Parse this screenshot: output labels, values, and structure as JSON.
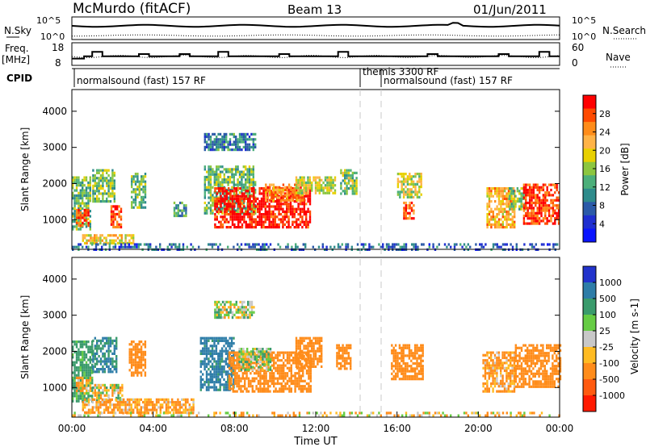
{
  "header": {
    "station": "McMurdo (fitACF)",
    "beam": "Beam 13",
    "date": "01/Jun/2011"
  },
  "panels": {
    "nsky": {
      "left_label": "N.Sky",
      "right_label": "N.Search",
      "left_ticks": [
        "10^5",
        "10^0"
      ],
      "right_ticks": [
        "10^5",
        "10^0"
      ]
    },
    "freq": {
      "left_label_line1": "Freq.",
      "left_label_line2": "[MHz]",
      "right_label": "Nave",
      "left_ticks": [
        "18",
        "8"
      ],
      "right_ticks": [
        "60",
        "0"
      ]
    },
    "cpid": {
      "label": "CPID",
      "segments": [
        {
          "text": "normalsound (fast) 157 RF",
          "start_hour": 0.0
        },
        {
          "text": "themis 3300 RF",
          "start_hour": 14.0
        },
        {
          "text": "normalsound (fast) 157 RF",
          "start_hour": 15.5
        }
      ]
    }
  },
  "axes": {
    "ylabel": "Slant Range [km]",
    "xlabel": "Time UT",
    "y_ticks": [
      "4000",
      "3000",
      "2000",
      "1000"
    ],
    "x_ticks": [
      "00:00",
      "04:00",
      "08:00",
      "12:00",
      "16:00",
      "20:00",
      "00:00"
    ]
  },
  "colorbars": {
    "power": {
      "label": "Power [dB]",
      "ticks": [
        "28",
        "24",
        "20",
        "16",
        "12",
        "8",
        "4"
      ],
      "colors": [
        "#ff0000",
        "#ff4a00",
        "#ff8c1a",
        "#ffb347",
        "#e8d000",
        "#8cc63f",
        "#4caf7a",
        "#2e8b8b",
        "#2b5aa8",
        "#1f2fd0",
        "#0a14ff"
      ]
    },
    "velocity": {
      "label": "Velocity [m s-1]",
      "ticks": [
        "1000",
        "500",
        "100",
        "25",
        "-25",
        "-100",
        "-500",
        "-1000"
      ],
      "colors": [
        "#2233cc",
        "#2e7da8",
        "#3a9b6c",
        "#66cc44",
        "#c8c8c8",
        "#ffbb22",
        "#ff8c1a",
        "#ff5a10",
        "#ff1a00"
      ]
    }
  },
  "chart_data": {
    "type": "heatmap",
    "x_range_hours": [
      0,
      24
    ],
    "y_range_km": [
      180,
      4600
    ],
    "panels": [
      "Power",
      "Velocity"
    ],
    "power_clusters": [
      {
        "t0": 0.0,
        "t1": 0.9,
        "r0": 700,
        "r1": 2200,
        "val": 12
      },
      {
        "t0": 0.2,
        "t1": 0.8,
        "r0": 800,
        "r1": 1300,
        "val": 26
      },
      {
        "t0": 1.0,
        "t1": 2.1,
        "r0": 1500,
        "r1": 2400,
        "val": 12
      },
      {
        "t0": 1.9,
        "t1": 2.4,
        "r0": 800,
        "r1": 1400,
        "val": 26
      },
      {
        "t0": 2.9,
        "t1": 3.6,
        "r0": 1300,
        "r1": 2300,
        "val": 12
      },
      {
        "t0": 0.5,
        "t1": 3.0,
        "r0": 350,
        "r1": 600,
        "val": 18
      },
      {
        "t0": 5.0,
        "t1": 5.6,
        "r0": 1100,
        "r1": 1500,
        "val": 10
      },
      {
        "t0": 6.5,
        "t1": 9.0,
        "r0": 1200,
        "r1": 2500,
        "val": 12
      },
      {
        "t0": 7.0,
        "t1": 11.7,
        "r0": 800,
        "r1": 1900,
        "val": 28
      },
      {
        "t0": 9.5,
        "t1": 11.5,
        "r0": 1500,
        "r1": 2000,
        "val": 22
      },
      {
        "t0": 6.5,
        "t1": 9.0,
        "r0": 2900,
        "r1": 3400,
        "val": 8
      },
      {
        "t0": 11.0,
        "t1": 13.0,
        "r0": 1700,
        "r1": 2200,
        "val": 16
      },
      {
        "t0": 13.2,
        "t1": 14.0,
        "r0": 1700,
        "r1": 2400,
        "val": 14
      },
      {
        "t0": 16.0,
        "t1": 17.2,
        "r0": 1600,
        "r1": 2300,
        "val": 16
      },
      {
        "t0": 16.3,
        "t1": 16.8,
        "r0": 1000,
        "r1": 1500,
        "val": 24
      },
      {
        "t0": 20.4,
        "t1": 21.8,
        "r0": 800,
        "r1": 1900,
        "val": 20
      },
      {
        "t0": 21.5,
        "t1": 22.3,
        "r0": 1300,
        "r1": 1900,
        "val": 14
      },
      {
        "t0": 22.2,
        "t1": 24.0,
        "r0": 900,
        "r1": 2000,
        "val": 26
      },
      {
        "t0": 0.0,
        "t1": 24.0,
        "r0": 200,
        "r1": 350,
        "val": 6
      }
    ],
    "velocity_clusters": [
      {
        "t0": 0.0,
        "t1": 1.0,
        "r0": 600,
        "r1": 2300,
        "val": 200
      },
      {
        "t0": 0.2,
        "t1": 0.9,
        "r0": 800,
        "r1": 1300,
        "val": -100
      },
      {
        "t0": 1.0,
        "t1": 2.2,
        "r0": 1400,
        "r1": 2400,
        "val": 500
      },
      {
        "t0": 1.0,
        "t1": 2.5,
        "r0": 600,
        "r1": 1100,
        "val": 0
      },
      {
        "t0": 2.8,
        "t1": 3.6,
        "r0": 1300,
        "r1": 2300,
        "val": -300
      },
      {
        "t0": 0.5,
        "t1": 6.0,
        "r0": 300,
        "r1": 700,
        "val": -150
      },
      {
        "t0": 6.3,
        "t1": 8.0,
        "r0": 900,
        "r1": 2400,
        "val": 600
      },
      {
        "t0": 7.7,
        "t1": 11.8,
        "r0": 900,
        "r1": 2000,
        "val": -250
      },
      {
        "t0": 8.2,
        "t1": 9.8,
        "r0": 1500,
        "r1": 2100,
        "val": 60
      },
      {
        "t0": 7.0,
        "t1": 9.0,
        "r0": 2900,
        "r1": 3400,
        "val": 20
      },
      {
        "t0": 11.0,
        "t1": 12.3,
        "r0": 1600,
        "r1": 2400,
        "val": -300
      },
      {
        "t0": 13.0,
        "t1": 13.7,
        "r0": 1500,
        "r1": 2200,
        "val": -300
      },
      {
        "t0": 15.7,
        "t1": 17.3,
        "r0": 1200,
        "r1": 2200,
        "val": -300
      },
      {
        "t0": 20.2,
        "t1": 21.8,
        "r0": 900,
        "r1": 2000,
        "val": -150
      },
      {
        "t0": 21.8,
        "t1": 24.0,
        "r0": 1000,
        "r1": 2200,
        "val": -250
      },
      {
        "t0": 0.0,
        "t1": 24.0,
        "r0": 200,
        "r1": 330,
        "val": -60
      }
    ]
  }
}
